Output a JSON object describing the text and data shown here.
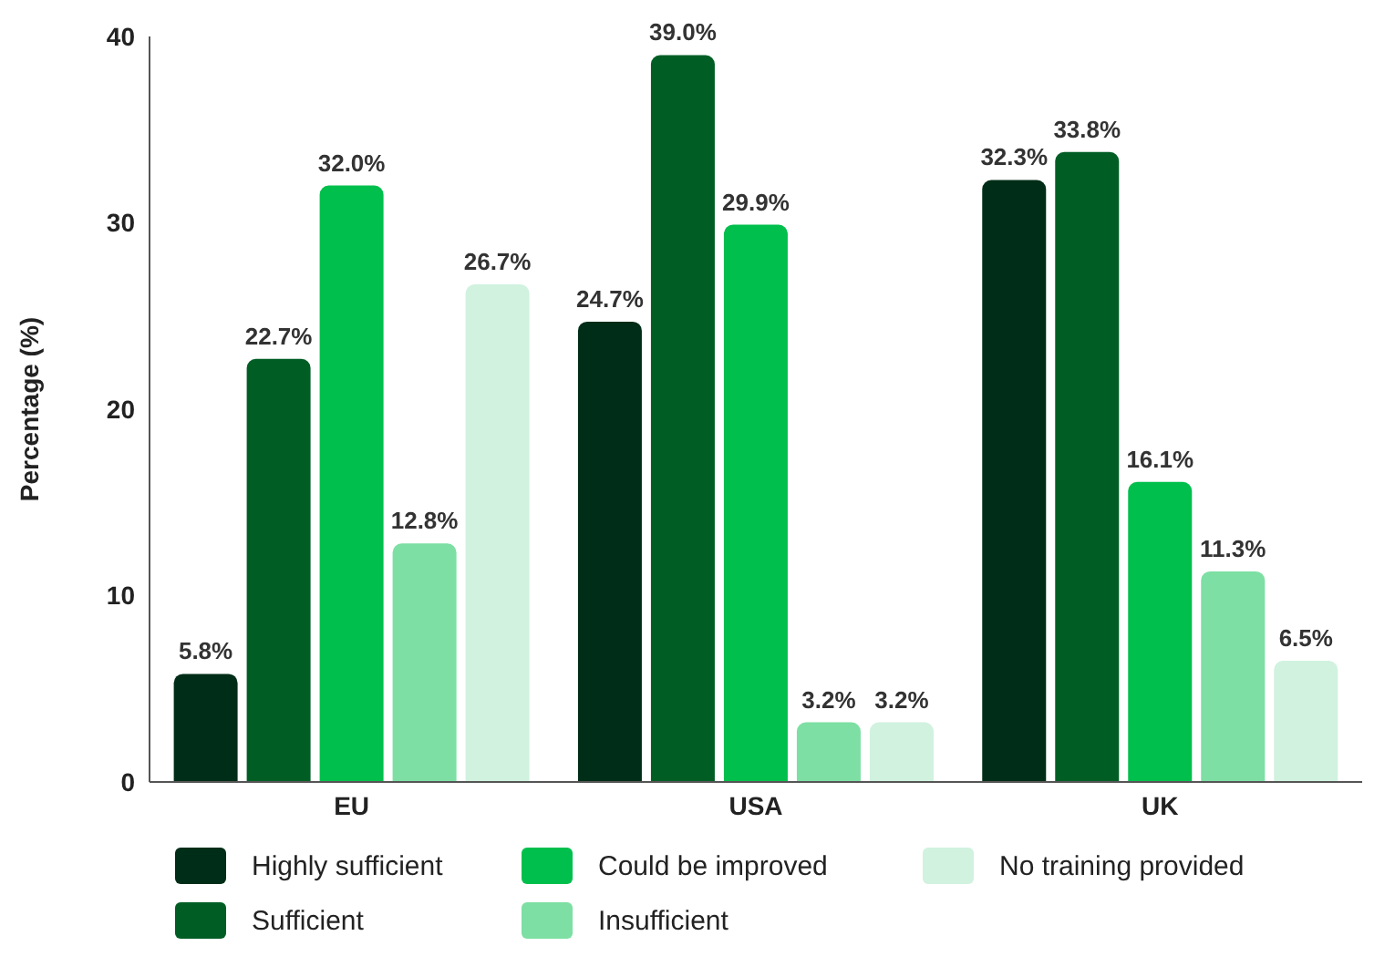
{
  "chart_data": {
    "type": "bar",
    "ylabel": "Percentage (%)",
    "categories": [
      "EU",
      "USA",
      "UK"
    ],
    "series": [
      {
        "name": "Highly sufficient",
        "color": "#002d17",
        "values": [
          5.8,
          24.7,
          32.3
        ]
      },
      {
        "name": "Sufficient",
        "color": "#005e25",
        "values": [
          22.7,
          39.0,
          33.8
        ]
      },
      {
        "name": "Could be improved",
        "color": "#00bf4c",
        "values": [
          32.0,
          29.9,
          16.1
        ]
      },
      {
        "name": "Insufficient",
        "color": "#7ddfa3",
        "values": [
          12.8,
          3.2,
          11.3
        ]
      },
      {
        "name": "No training provided",
        "color": "#d0f2df",
        "values": [
          26.7,
          3.2,
          6.5
        ]
      }
    ],
    "value_labels": [
      [
        "5.8%",
        "24.7%",
        "32.3%"
      ],
      [
        "22.7%",
        "39.0%",
        "33.8%"
      ],
      [
        "32.0%",
        "29.9%",
        "16.1%"
      ],
      [
        "12.8%",
        "3.2%",
        "11.3%"
      ],
      [
        "26.7%",
        "3.2%",
        "6.5%"
      ]
    ],
    "ylim": [
      0,
      40
    ],
    "yticks": [
      0,
      10,
      20,
      30,
      40
    ],
    "grid": false,
    "legend": "bottom"
  }
}
